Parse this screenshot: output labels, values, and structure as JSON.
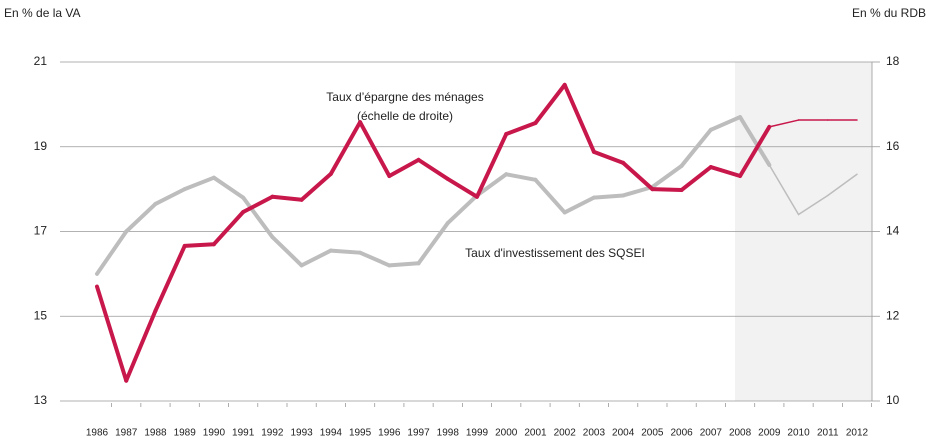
{
  "chart_data": {
    "type": "line",
    "y_label": "En % de la VA",
    "y2_label": "En % du RDB",
    "annotations": [
      "Taux d’épargne des ménages",
      "(échelle de droite)",
      "Taux d'investissement des SQSEI"
    ],
    "categories": [
      "1986",
      "1987",
      "1988",
      "1989",
      "1990",
      "1991",
      "1992",
      "1993",
      "1994",
      "1995",
      "1996",
      "1997",
      "1998",
      "1999",
      "2000",
      "2001",
      "2002",
      "2003",
      "2004",
      "2005",
      "2006",
      "2007",
      "2008",
      "2009",
      "2010",
      "2011",
      "2012"
    ],
    "series": [
      {
        "name": "Taux d'investissement des SQSEI",
        "color": "#bdbdbd",
        "axis": "y",
        "values": [
          16.0,
          17.0,
          17.65,
          18.0,
          18.27,
          17.8,
          16.87,
          16.2,
          16.55,
          16.5,
          16.2,
          16.25,
          17.2,
          17.85,
          18.35,
          18.22,
          17.45,
          17.8,
          17.85,
          18.05,
          18.55,
          19.4,
          19.7,
          18.57,
          17.4,
          17.85,
          18.35
        ]
      },
      {
        "name": "Taux d’épargne des ménages",
        "color": "#c8174a",
        "axis": "y2",
        "values": [
          12.7,
          10.48,
          12.13,
          13.66,
          13.7,
          14.46,
          14.82,
          14.75,
          15.36,
          16.58,
          15.31,
          15.69,
          15.24,
          14.82,
          16.3,
          16.56,
          17.46,
          15.88,
          15.62,
          15.0,
          14.98,
          15.52,
          15.31,
          16.47,
          16.63,
          16.63,
          16.63
        ]
      }
    ],
    "ylim": [
      13,
      21
    ],
    "yticks": [
      13,
      15,
      17,
      19,
      21
    ],
    "y2lim": [
      10,
      18
    ],
    "y2ticks": [
      10,
      12,
      14,
      16,
      18
    ],
    "grid": true
  }
}
